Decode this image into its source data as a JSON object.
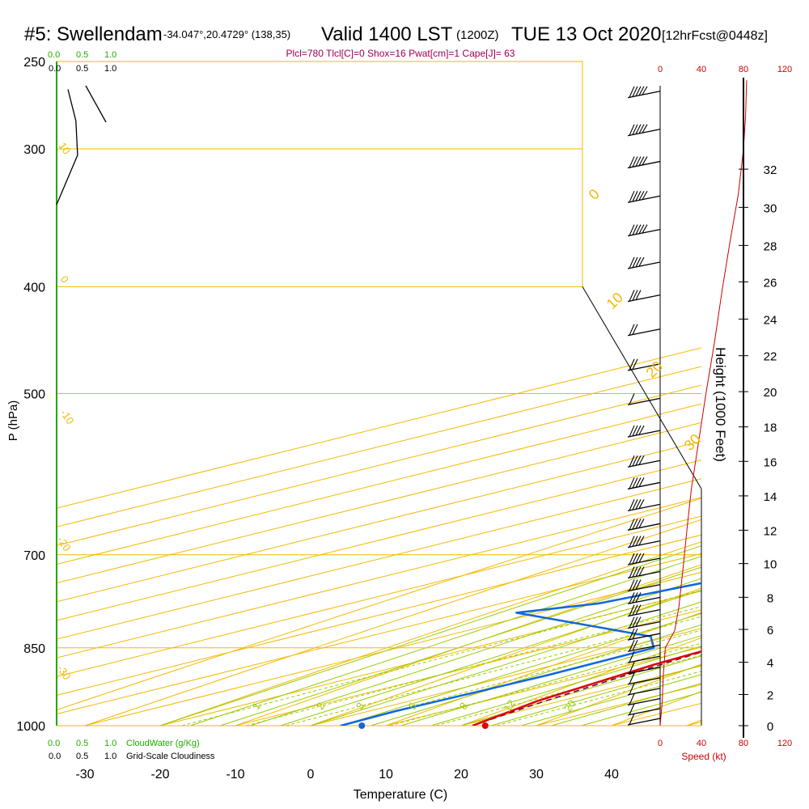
{
  "header": {
    "title": "#5: Swellendam",
    "location": "-34.047°,20.4729° (138,35)",
    "valid": "Valid 1400 LST",
    "valid_z": "(1200Z)",
    "date": "TUE 13 Oct 2020",
    "forecast": "[12hrFcst@0448z]",
    "params": "Plcl=780 Tlcl[C]=0 Shox=16 Pwat[cm]=1 Cape[J]= 63"
  },
  "colors": {
    "isotherm": "#f5b800",
    "moist_adiabat": "#99cc00",
    "temperature": "#dd0000",
    "dewpoint": "#1166dd",
    "parcel": "#770044",
    "speed": "#cc0000",
    "cloud_scale": "#22aa00",
    "height": "#000000"
  },
  "chart_data": {
    "type": "line",
    "title": "",
    "xlabel": "Temperature (C)",
    "ylabel": "P (hPa)",
    "xlim": [
      -35,
      45
    ],
    "ylim_pressure": [
      1000,
      250
    ],
    "x_ticks": [
      "-30",
      "-20",
      "-10",
      "0",
      "10",
      "20",
      "30",
      "40"
    ],
    "pressure_levels": [
      {
        "p": 250,
        "label": "250"
      },
      {
        "p": 300,
        "label": "300"
      },
      {
        "p": 400,
        "label": "400"
      },
      {
        "p": 500,
        "label": "500"
      },
      {
        "p": 700,
        "label": "700"
      },
      {
        "p": 850,
        "label": "850"
      },
      {
        "p": 1000,
        "label": "1000"
      }
    ],
    "series": [
      {
        "name": "Temperature",
        "points": [
          [
            21.5,
            1000
          ],
          [
            17.0,
            950
          ],
          [
            13.0,
            880
          ],
          [
            12.0,
            850
          ],
          [
            13.0,
            835
          ],
          [
            15.5,
            825
          ],
          [
            16.5,
            810
          ],
          [
            16.3,
            780
          ],
          [
            16.0,
            730
          ],
          [
            15.3,
            680
          ],
          [
            14.8,
            640
          ],
          [
            14.0,
            600
          ],
          [
            13.5,
            560
          ],
          [
            12.5,
            530
          ],
          [
            11.0,
            500
          ],
          [
            9.0,
            450
          ],
          [
            7.0,
            400
          ],
          [
            5.0,
            360
          ],
          [
            2.5,
            320
          ],
          [
            0.0,
            290
          ],
          [
            -1.5,
            266
          ]
        ]
      },
      {
        "name": "Dewpoint",
        "points": [
          [
            4.0,
            1000
          ],
          [
            3.5,
            970
          ],
          [
            4.5,
            900
          ],
          [
            4.0,
            850
          ],
          [
            -2.5,
            830
          ],
          [
            -33.0,
            790
          ],
          [
            -27.0,
            775
          ],
          [
            -24.0,
            740
          ],
          [
            -22.5,
            720
          ],
          [
            -22.5,
            700
          ],
          [
            -20.5,
            670
          ],
          [
            -15.0,
            620
          ],
          [
            -11.0,
            590
          ],
          [
            -5.0,
            540
          ],
          [
            -2.0,
            500
          ],
          [
            -1.5,
            460
          ],
          [
            -1.5,
            420
          ],
          [
            -2.5,
            390
          ],
          [
            -1.0,
            340
          ],
          [
            0.5,
            320
          ],
          [
            0.0,
            300
          ],
          [
            -3.5,
            266
          ]
        ]
      },
      {
        "name": "Parcel",
        "points": [
          [
            21.5,
            1000
          ],
          [
            18.0,
            950
          ],
          [
            15.0,
            900
          ],
          [
            12.5,
            855
          ]
        ]
      },
      {
        "name": "Cloudiness",
        "points": [
          [
            0.0,
            337
          ],
          [
            0.37,
            304
          ],
          [
            0.34,
            283
          ],
          [
            0.2,
            265
          ]
        ]
      }
    ],
    "surface_markers": {
      "temperature": 23.2,
      "dewpoint": 6.8
    },
    "isotherm_labels": [
      {
        "t": 0,
        "label": "0"
      },
      {
        "t": 10,
        "label": "10"
      },
      {
        "t": 20,
        "label": "20"
      },
      {
        "t": 30,
        "label": "30"
      }
    ],
    "adiabat_labels": [
      "10",
      "0",
      "-10",
      "-20",
      "-30"
    ],
    "mixing_ratio_labels": [
      "1",
      "2",
      "3",
      "5",
      "8",
      "12",
      "20"
    ],
    "wind_barbs": [
      {
        "p": 266,
        "speed": 50
      },
      {
        "p": 288,
        "speed": 50
      },
      {
        "p": 308,
        "speed": 50
      },
      {
        "p": 331,
        "speed": 50
      },
      {
        "p": 355,
        "speed": 45
      },
      {
        "p": 380,
        "speed": 40
      },
      {
        "p": 407,
        "speed": 30
      },
      {
        "p": 437,
        "speed": 20
      },
      {
        "p": 470,
        "speed": 15
      },
      {
        "p": 505,
        "speed": 10
      },
      {
        "p": 540,
        "speed": 35
      },
      {
        "p": 575,
        "speed": 35
      },
      {
        "p": 602,
        "speed": 40
      },
      {
        "p": 630,
        "speed": 40
      },
      {
        "p": 656,
        "speed": 40
      },
      {
        "p": 680,
        "speed": 40
      },
      {
        "p": 705,
        "speed": 35
      },
      {
        "p": 725,
        "speed": 35
      },
      {
        "p": 745,
        "speed": 30
      },
      {
        "p": 765,
        "speed": 30
      },
      {
        "p": 785,
        "speed": 25
      },
      {
        "p": 805,
        "speed": 25
      },
      {
        "p": 825,
        "speed": 20
      },
      {
        "p": 845,
        "speed": 15
      },
      {
        "p": 865,
        "speed": 10
      },
      {
        "p": 885,
        "speed": 10
      },
      {
        "p": 905,
        "speed": 10
      },
      {
        "p": 925,
        "speed": 5
      },
      {
        "p": 945,
        "speed": 5
      },
      {
        "p": 965,
        "speed": 5
      },
      {
        "p": 985,
        "speed": 5
      }
    ],
    "wind_speed_profile": [
      [
        0,
        1000
      ],
      [
        2,
        950
      ],
      [
        3,
        900
      ],
      [
        5,
        850
      ],
      [
        14,
        820
      ],
      [
        18,
        780
      ],
      [
        22,
        720
      ],
      [
        26,
        660
      ],
      [
        30,
        610
      ],
      [
        36,
        560
      ],
      [
        44,
        500
      ],
      [
        52,
        450
      ],
      [
        60,
        400
      ],
      [
        68,
        360
      ],
      [
        75,
        330
      ],
      [
        80,
        300
      ],
      [
        82,
        280
      ],
      [
        83,
        260
      ]
    ],
    "speed_axis": {
      "label": "Speed (kt)",
      "ticks_inner": [
        "0",
        "40",
        "80"
      ],
      "ticks_outer": [
        "120"
      ]
    },
    "height_axis": {
      "label": "Height (1000 Feet)",
      "ticks": [
        {
          "v": "0",
          "p": 1000
        },
        {
          "v": "2",
          "p": 937
        },
        {
          "v": "4",
          "p": 876
        },
        {
          "v": "6",
          "p": 818
        },
        {
          "v": "8",
          "p": 765
        },
        {
          "v": "10",
          "p": 713
        },
        {
          "v": "12",
          "p": 665
        },
        {
          "v": "14",
          "p": 619
        },
        {
          "v": "16",
          "p": 576
        },
        {
          "v": "18",
          "p": 536
        },
        {
          "v": "20",
          "p": 498
        },
        {
          "v": "22",
          "p": 462
        },
        {
          "v": "24",
          "p": 428
        },
        {
          "v": "26",
          "p": 396
        },
        {
          "v": "28",
          "p": 367
        },
        {
          "v": "30",
          "p": 339
        },
        {
          "v": "32",
          "p": 313
        }
      ]
    },
    "cloud_scale": {
      "top_green": [
        "0.0",
        "0.5",
        "1.0"
      ],
      "top_black": [
        "0.0",
        "0.5",
        "1.0"
      ],
      "bottom_green": [
        "0.0",
        "0.5",
        "1.0"
      ],
      "bottom_green_label": "CloudWater (g/Kg)",
      "bottom_black": [
        "0.0",
        "0.5",
        "1.0"
      ],
      "bottom_black_label": "Grid-Scale Cloudiness"
    }
  }
}
